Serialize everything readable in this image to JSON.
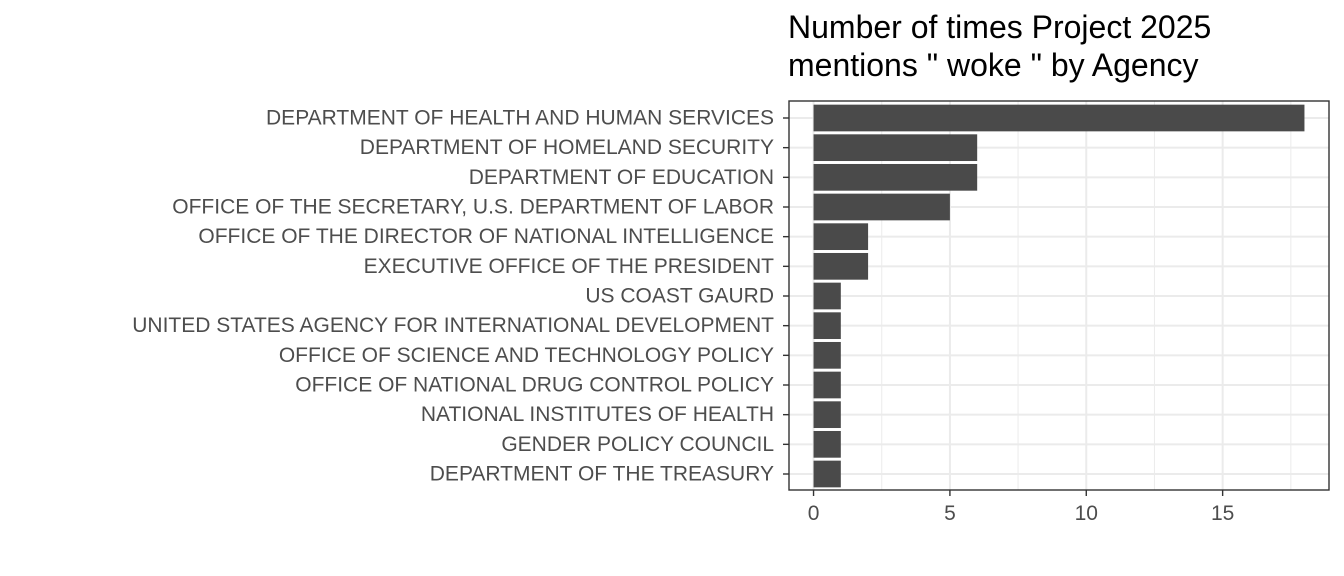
{
  "chart_data": {
    "type": "bar",
    "orientation": "horizontal",
    "title_lines": [
      "Number of times Project 2025",
      "mentions \" woke \" by Agency"
    ],
    "xlabel": "",
    "ylabel": "",
    "categories": [
      "DEPARTMENT OF HEALTH AND HUMAN SERVICES",
      "DEPARTMENT OF HOMELAND SECURITY",
      "DEPARTMENT OF EDUCATION",
      "OFFICE OF THE SECRETARY, U.S. DEPARTMENT OF LABOR",
      "OFFICE OF THE DIRECTOR OF NATIONAL INTELLIGENCE",
      "EXECUTIVE OFFICE OF THE PRESIDENT",
      "US COAST GAURD",
      "UNITED STATES AGENCY FOR INTERNATIONAL DEVELOPMENT",
      "OFFICE OF SCIENCE AND TECHNOLOGY POLICY",
      "OFFICE OF NATIONAL DRUG CONTROL POLICY",
      "NATIONAL INSTITUTES OF HEALTH",
      "GENDER POLICY COUNCIL",
      "DEPARTMENT OF THE TREASURY"
    ],
    "values": [
      18,
      6,
      6,
      5,
      2,
      2,
      1,
      1,
      1,
      1,
      1,
      1,
      1
    ],
    "xlim": [
      -0.9,
      18.9
    ],
    "xticks": [
      0,
      5,
      10,
      15
    ],
    "grid": true,
    "bar_color": "#4a4a4a",
    "grid_color": "#ebebeb",
    "panel_border_color": "#333333"
  }
}
